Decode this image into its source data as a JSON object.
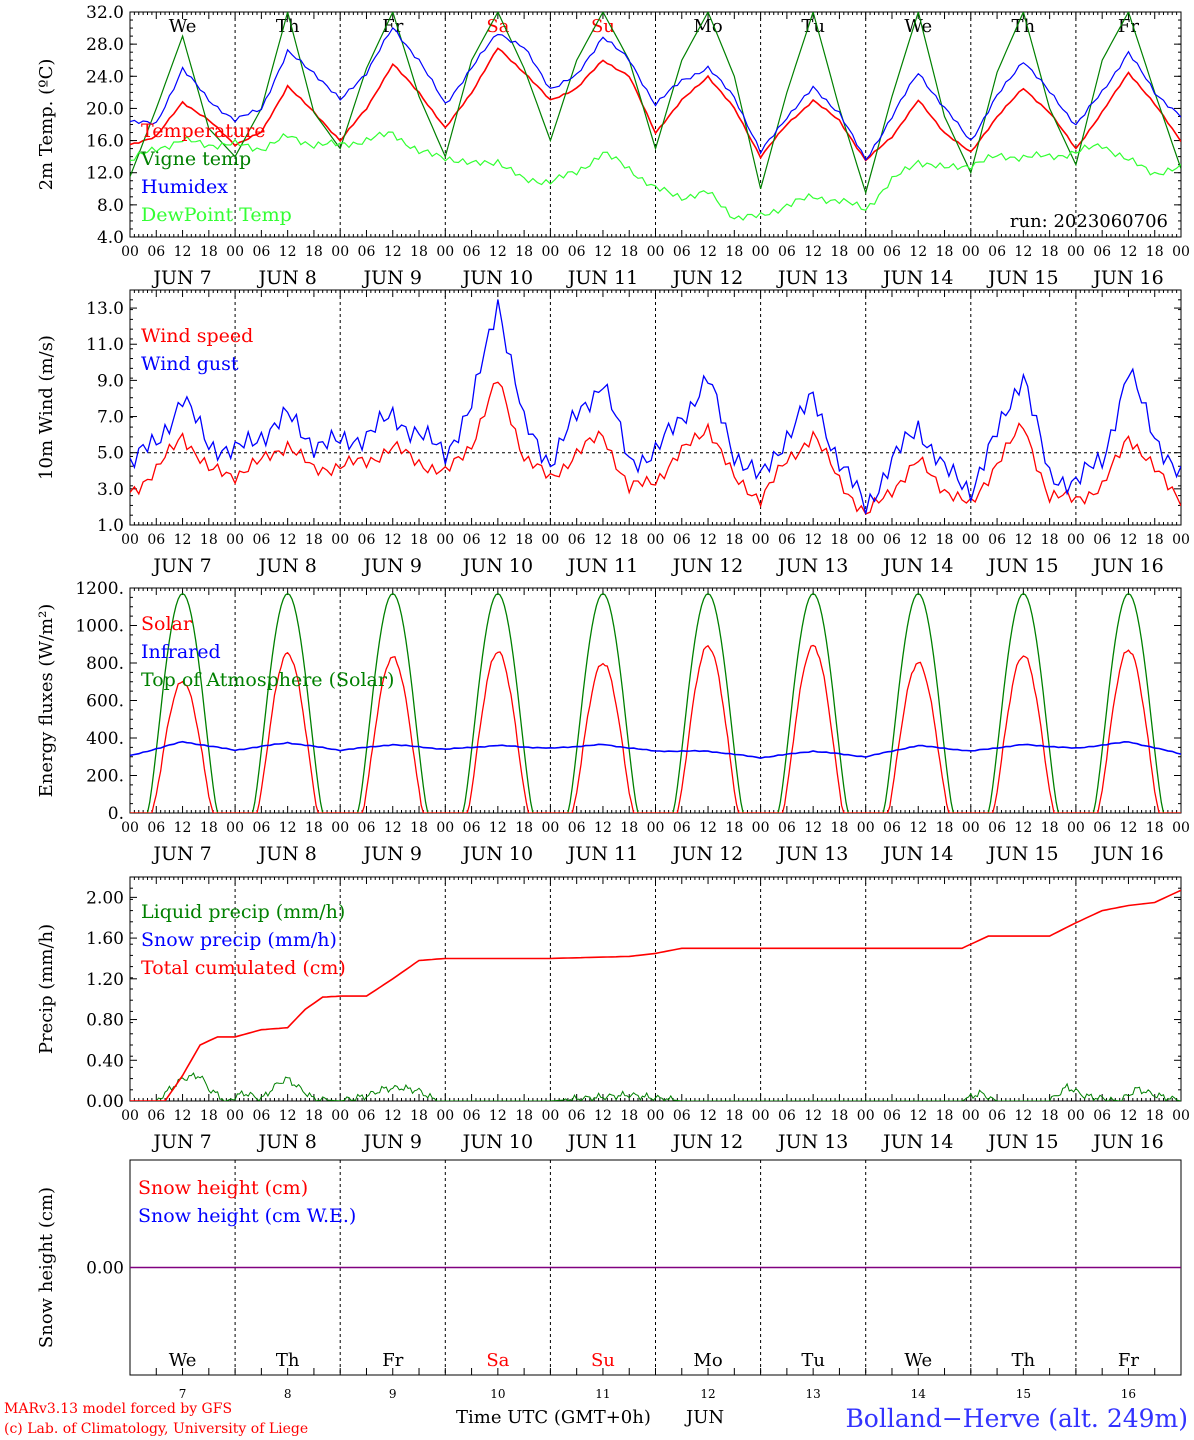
{
  "run_label": "run: 2023060706",
  "footer": {
    "credit_line1": "MARv3.13 model forced by GFS",
    "credit_line2": "(c) Lab. of Climatology, University of Liege",
    "xlabel": "Time UTC (GMT+0h)",
    "month": "JUN",
    "station": "Bolland−Herve (alt. 249m)"
  },
  "days": [
    {
      "date": "7",
      "weekday": "We",
      "weekend": false
    },
    {
      "date": "8",
      "weekday": "Th",
      "weekend": false
    },
    {
      "date": "9",
      "weekday": "Fr",
      "weekend": false
    },
    {
      "date": "10",
      "weekday": "Sa",
      "weekend": true
    },
    {
      "date": "11",
      "weekday": "Su",
      "weekend": true
    },
    {
      "date": "12",
      "weekday": "Mo",
      "weekend": false
    },
    {
      "date": "13",
      "weekday": "Tu",
      "weekend": false
    },
    {
      "date": "14",
      "weekday": "We",
      "weekend": false
    },
    {
      "date": "15",
      "weekday": "Th",
      "weekend": false
    },
    {
      "date": "16",
      "weekday": "Fr",
      "weekend": false
    }
  ],
  "hour_ticks": [
    "00",
    "06",
    "12",
    "18"
  ],
  "end_tick": "00",
  "colors": {
    "red": "#ff0000",
    "blue": "#0000ff",
    "green": "#008000",
    "lightgreen": "#33ff33",
    "purple": "#800080",
    "station": "#3333ff"
  },
  "chart_data": [
    {
      "type": "line",
      "ylabel": "2m Temp. (ºC)",
      "ylim": [
        4,
        32
      ],
      "yticks": [
        "4.0",
        "8.0",
        "12.0",
        "16.0",
        "20.0",
        "24.0",
        "28.0",
        "32.0"
      ],
      "x_hours": [
        0,
        6,
        12,
        18,
        24,
        30,
        36,
        42,
        48,
        54,
        60,
        66,
        72,
        78,
        84,
        90,
        96,
        102,
        108,
        114,
        120,
        126,
        132,
        138,
        144,
        150,
        156,
        162,
        168,
        174,
        180,
        186,
        192,
        198,
        204,
        210,
        216,
        222,
        228,
        234,
        240
      ],
      "series": [
        {
          "name": "Temperature",
          "color": "#ff0000",
          "values": [
            15.5,
            16.5,
            20.8,
            18.5,
            15.5,
            17.0,
            22.8,
            19.5,
            16.0,
            20.0,
            25.5,
            22.0,
            17.5,
            22.0,
            27.5,
            24.5,
            21.0,
            22.5,
            26.0,
            24.0,
            17.0,
            21.0,
            24.0,
            20.0,
            14.0,
            18.0,
            21.0,
            18.5,
            13.5,
            16.5,
            21.0,
            17.0,
            14.5,
            19.0,
            22.5,
            19.5,
            15.0,
            19.5,
            24.5,
            20.5,
            16.0
          ]
        },
        {
          "name": "Vigne temp",
          "color": "#008000",
          "values": [
            11.5,
            20.0,
            29.0,
            17.5,
            14.0,
            20.0,
            32.0,
            19.5,
            15.0,
            25.0,
            32.0,
            21.5,
            14.0,
            26.0,
            32.0,
            25.0,
            16.0,
            26.0,
            32.0,
            26.0,
            15.0,
            26.0,
            32.0,
            24.0,
            10.0,
            22.0,
            32.0,
            20.0,
            9.5,
            21.5,
            32.0,
            19.0,
            12.0,
            24.5,
            32.0,
            20.0,
            13.0,
            26.0,
            32.0,
            22.0,
            12.5
          ]
        },
        {
          "name": "Humidex",
          "color": "#0000ff",
          "values": [
            18.5,
            18.0,
            25.0,
            21.0,
            18.5,
            20.0,
            27.0,
            24.5,
            21.0,
            24.5,
            30.0,
            26.0,
            20.5,
            25.0,
            29.5,
            27.5,
            22.5,
            24.0,
            29.0,
            26.0,
            20.5,
            23.5,
            25.0,
            21.5,
            14.5,
            19.0,
            22.5,
            19.5,
            13.5,
            19.0,
            24.5,
            20.0,
            16.0,
            21.5,
            26.0,
            22.0,
            18.0,
            22.0,
            27.0,
            22.0,
            19.0
          ]
        },
        {
          "name": "DewPoint Temp",
          "color": "#33ff33",
          "values": [
            13.5,
            15.0,
            16.0,
            15.5,
            15.5,
            15.0,
            16.5,
            15.5,
            15.5,
            16.0,
            17.0,
            14.5,
            14.0,
            13.0,
            13.5,
            11.0,
            11.0,
            12.0,
            14.5,
            12.5,
            10.0,
            9.0,
            9.5,
            6.5,
            6.5,
            8.0,
            9.0,
            8.5,
            7.5,
            11.0,
            13.5,
            12.5,
            13.0,
            14.0,
            14.0,
            14.0,
            14.5,
            15.5,
            13.5,
            12.0,
            12.5
          ]
        }
      ]
    },
    {
      "type": "line",
      "ylabel": "10m Wind (m/s)",
      "ylim": [
        1,
        14
      ],
      "yticks": [
        "1.0",
        "3.0",
        "5.0",
        "7.0",
        "9.0",
        "11.0",
        "13.0"
      ],
      "ref_line": 5,
      "x_hours": [
        0,
        6,
        12,
        18,
        24,
        30,
        36,
        42,
        48,
        54,
        60,
        66,
        72,
        78,
        84,
        90,
        96,
        102,
        108,
        114,
        120,
        126,
        132,
        138,
        144,
        150,
        156,
        162,
        168,
        174,
        180,
        186,
        192,
        198,
        204,
        210,
        216,
        222,
        228,
        234,
        240
      ],
      "series": [
        {
          "name": "Wind speed",
          "color": "#ff0000",
          "values": [
            2.8,
            4.0,
            6.0,
            4.0,
            3.8,
            4.5,
            5.5,
            4.0,
            4.3,
            4.5,
            5.3,
            4.5,
            3.8,
            5.5,
            9.0,
            4.8,
            3.5,
            5.0,
            6.0,
            3.0,
            3.5,
            5.0,
            6.5,
            3.5,
            2.5,
            4.5,
            6.0,
            3.5,
            1.5,
            3.0,
            4.5,
            3.0,
            2.0,
            4.5,
            6.5,
            2.5,
            2.5,
            3.0,
            6.0,
            4.0,
            2.5
          ]
        },
        {
          "name": "Wind gust",
          "color": "#0000ff",
          "values": [
            4.5,
            5.5,
            8.0,
            5.5,
            5.0,
            6.0,
            7.0,
            5.5,
            5.5,
            6.0,
            7.0,
            6.0,
            5.0,
            7.5,
            13.5,
            6.5,
            4.5,
            7.0,
            9.0,
            4.5,
            5.0,
            7.0,
            9.0,
            5.0,
            3.5,
            6.0,
            8.0,
            4.5,
            2.0,
            4.5,
            6.5,
            4.0,
            3.0,
            6.0,
            9.5,
            3.5,
            3.5,
            4.5,
            9.5,
            6.0,
            3.5
          ]
        }
      ]
    },
    {
      "type": "line",
      "ylabel": "Energy fluxes (W/m²)",
      "ylim": [
        0,
        1200
      ],
      "yticks": [
        "0.",
        "200.",
        "400.",
        "600.",
        "800.",
        "1000.",
        "1200."
      ],
      "series": [
        {
          "name": "Solar",
          "color": "#ff0000",
          "daily_peak": [
            700,
            850,
            830,
            860,
            800,
            890,
            890,
            800,
            840,
            870
          ]
        },
        {
          "name": "Infrared",
          "color": "#0000ff",
          "x_hours": [
            0,
            12,
            24,
            36,
            48,
            60,
            72,
            84,
            96,
            108,
            120,
            132,
            144,
            156,
            168,
            180,
            192,
            204,
            216,
            228,
            240
          ],
          "values": [
            305,
            380,
            335,
            375,
            335,
            365,
            340,
            360,
            345,
            365,
            330,
            330,
            295,
            330,
            300,
            360,
            330,
            365,
            345,
            380,
            315
          ]
        },
        {
          "name": "Top of Atmosphere (Solar)",
          "color": "#008000",
          "daily_peak": [
            1170,
            1170,
            1170,
            1170,
            1170,
            1170,
            1170,
            1170,
            1170,
            1170
          ]
        }
      ]
    },
    {
      "type": "line",
      "ylabel": "Precip (mm/h)",
      "ylim": [
        0,
        2.2
      ],
      "yticks": [
        "0.00",
        "0.40",
        "0.80",
        "1.20",
        "1.60",
        "2.00"
      ],
      "series": [
        {
          "name": "Liquid precip (mm/h)",
          "color": "#008000",
          "x_hours": [
            0,
            6,
            10,
            12,
            14,
            16,
            18,
            22,
            26,
            30,
            34,
            36,
            38,
            42,
            48,
            54,
            58,
            62,
            66,
            70,
            96,
            114,
            126,
            190,
            194,
            198,
            210,
            214,
            218,
            226,
            230,
            234,
            238,
            240
          ],
          "values": [
            0,
            0,
            0.15,
            0.22,
            0.24,
            0.25,
            0.12,
            0,
            0.08,
            0.02,
            0.18,
            0.22,
            0.15,
            0.02,
            0.0,
            0.05,
            0.12,
            0.13,
            0.1,
            0.0,
            0.0,
            0.06,
            0.0,
            0.0,
            0.08,
            0.0,
            0.0,
            0.14,
            0.05,
            0.0,
            0.12,
            0.06,
            0.02,
            0.0
          ]
        },
        {
          "name": "Snow precip (mm/h)",
          "color": "#0000ff",
          "values": []
        },
        {
          "name": "Total cumulated (cm)",
          "color": "#ff0000",
          "x_hours": [
            0,
            8,
            12,
            16,
            20,
            24,
            30,
            36,
            40,
            44,
            48,
            54,
            60,
            66,
            72,
            96,
            114,
            120,
            126,
            168,
            190,
            196,
            210,
            216,
            222,
            228,
            234,
            240
          ],
          "values": [
            0,
            0,
            0.25,
            0.55,
            0.63,
            0.63,
            0.7,
            0.72,
            0.9,
            1.02,
            1.03,
            1.03,
            1.2,
            1.38,
            1.4,
            1.4,
            1.42,
            1.45,
            1.5,
            1.5,
            1.5,
            1.62,
            1.62,
            1.75,
            1.87,
            1.92,
            1.95,
            2.07
          ]
        }
      ]
    },
    {
      "type": "line",
      "ylabel": "Snow height (cm)",
      "ylim": [
        -1,
        1
      ],
      "yticks": [
        "0.00"
      ],
      "series": [
        {
          "name": "Snow height (cm)",
          "color": "#ff0000",
          "values": [
            0
          ]
        },
        {
          "name": "Snow height (cm W.E.)",
          "color": "#0000ff",
          "values": [
            0
          ]
        }
      ]
    }
  ]
}
